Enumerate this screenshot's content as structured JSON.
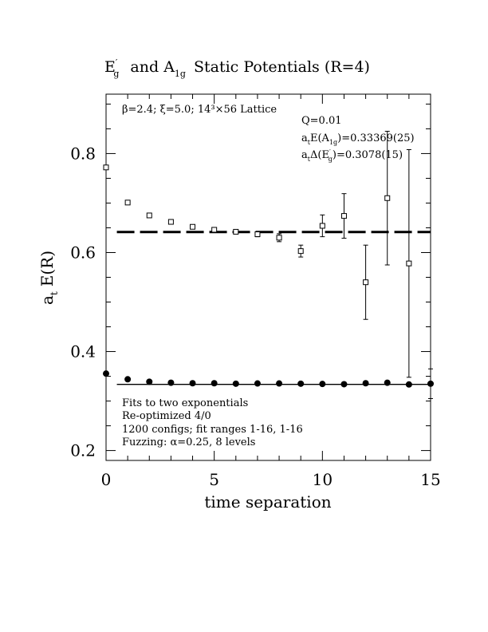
{
  "chart_data": {
    "type": "scatter",
    "title": {
      "main_1": "E",
      "main_1_sup": "′",
      "main_1_sub": "g",
      "main_2": "and A",
      "main_2_sub": "1g",
      "main_3": "Static Potentials (R=4)"
    },
    "xlabel": "time separation",
    "ylabel": "a",
    "ylabel_sub": "t",
    "ylabel_rest": "E(R)",
    "xlim": [
      0,
      15
    ],
    "ylim": [
      0.18,
      0.92
    ],
    "x_ticks": [
      {
        "value": 0,
        "label": "0"
      },
      {
        "value": 5,
        "label": "5"
      },
      {
        "value": 10,
        "label": "10"
      },
      {
        "value": 15,
        "label": "15"
      }
    ],
    "y_ticks": [
      {
        "value": 0.2,
        "label": "0.2"
      },
      {
        "value": 0.4,
        "label": "0.4"
      },
      {
        "value": 0.6,
        "label": "0.6"
      },
      {
        "value": 0.8,
        "label": "0.8"
      }
    ],
    "annotations": {
      "lattice": "β=2.4; ξ=5.0; 14³×56 Lattice",
      "q": "Q=0.01",
      "energy_prefix": "a",
      "energy_sub": "t",
      "energy_mid": "E(A",
      "energy_sub2": "1g",
      "energy_value": ")=0.33369(25)",
      "gap_prefix": "a",
      "gap_sub": "t",
      "gap_mid": "Δ(E",
      "gap_sup": "′",
      "gap_sub2": "g",
      "gap_value": ")=0.3078(15)",
      "fits_1": "Fits to two exponentials",
      "fits_2": "Re-optimized 4/0",
      "fits_3": "1200 configs; fit ranges 1-16, 1-16",
      "fits_4": "Fuzzing: α=0.25, 8 levels"
    },
    "series": [
      {
        "marker": "open-square",
        "points": [
          {
            "x": 0,
            "y": 0.772,
            "err": 0.003
          },
          {
            "x": 1,
            "y": 0.701,
            "err": 0.003
          },
          {
            "x": 2,
            "y": 0.675,
            "err": 0.003
          },
          {
            "x": 3,
            "y": 0.662,
            "err": 0.003
          },
          {
            "x": 4,
            "y": 0.652,
            "err": 0.003
          },
          {
            "x": 5,
            "y": 0.646,
            "err": 0.003
          },
          {
            "x": 6,
            "y": 0.642,
            "err": 0.004
          },
          {
            "x": 7,
            "y": 0.637,
            "err": 0.005
          },
          {
            "x": 8,
            "y": 0.63,
            "err": 0.008
          },
          {
            "x": 9,
            "y": 0.603,
            "err": 0.012
          },
          {
            "x": 10,
            "y": 0.654,
            "err": 0.022
          },
          {
            "x": 11,
            "y": 0.674,
            "err": 0.045
          },
          {
            "x": 12,
            "y": 0.54,
            "err": 0.075
          },
          {
            "x": 13,
            "y": 0.71,
            "err": 0.135
          },
          {
            "x": 14,
            "y": 0.578,
            "err": 0.23
          }
        ]
      },
      {
        "marker": "filled-circle",
        "points": [
          {
            "x": 0,
            "y": 0.3555,
            "err": 0.001
          },
          {
            "x": 1,
            "y": 0.344,
            "err": 0.001
          },
          {
            "x": 2,
            "y": 0.339,
            "err": 0.001
          },
          {
            "x": 3,
            "y": 0.337,
            "err": 0.001
          },
          {
            "x": 4,
            "y": 0.336,
            "err": 0.001
          },
          {
            "x": 5,
            "y": 0.336,
            "err": 0.001
          },
          {
            "x": 6,
            "y": 0.335,
            "err": 0.001
          },
          {
            "x": 7,
            "y": 0.3355,
            "err": 0.001
          },
          {
            "x": 8,
            "y": 0.3355,
            "err": 0.001
          },
          {
            "x": 9,
            "y": 0.335,
            "err": 0.001
          },
          {
            "x": 10,
            "y": 0.3345,
            "err": 0.001
          },
          {
            "x": 11,
            "y": 0.334,
            "err": 0.001
          },
          {
            "x": 12,
            "y": 0.336,
            "err": 0.002
          },
          {
            "x": 13,
            "y": 0.337,
            "err": 0.002
          },
          {
            "x": 14,
            "y": 0.3335,
            "err": 0.003
          },
          {
            "x": 15,
            "y": 0.335,
            "err": 0.03
          }
        ]
      }
    ],
    "fit_lines": [
      {
        "style": "dashed",
        "y": 0.6415,
        "x_start": 0.5,
        "x_end": 15
      },
      {
        "style": "solid",
        "y": 0.3337,
        "x_start": 0.5,
        "x_end": 15
      }
    ]
  }
}
